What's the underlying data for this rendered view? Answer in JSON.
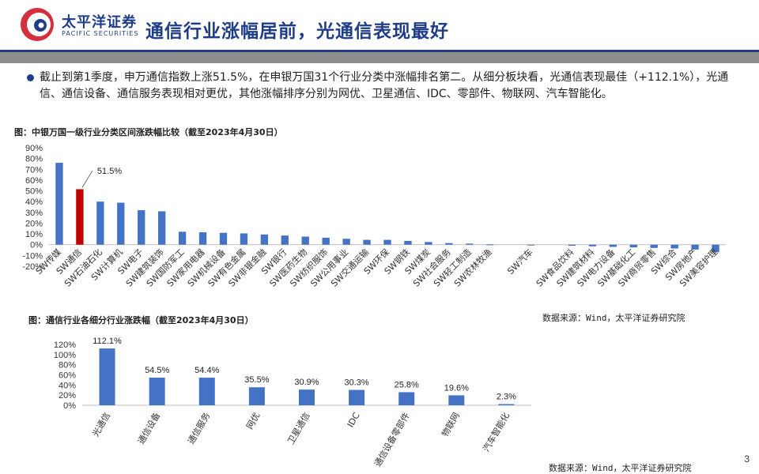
{
  "header": {
    "logo_cn": "太平洋证券",
    "logo_en": "PACIFIC SECURITIES",
    "title": "通信行业涨幅居前，光通信表现最好"
  },
  "summary": {
    "text": "截止到第1季度，申万通信指数上涨51.5%，在申银万国31个行业分类中涨幅排名第二。从细分板块看，光通信表现最佳（+112.1%），光通信、通信设备、通信服务表现相对更优，其他涨幅排序分别为网优、卫星通信、IDC、零部件、物联网、汽车智能化。"
  },
  "chart1": {
    "caption": "图：中银万国一级行业分类区间涨跌幅比较（截至2023年4月30日）",
    "source": "数据来源：Wind，太平洋证券研究院"
  },
  "chart2": {
    "caption": "图：通信行业各细分行业涨跌幅（截至2023年4月30日）",
    "source": "数据来源：Wind，太平洋证券研究院"
  },
  "page_number": "3",
  "colors": {
    "blue": "#4472c4",
    "red": "#c00000",
    "brand": "#1f3c88"
  },
  "chart_data": [
    {
      "type": "bar",
      "categories": [
        "SW传媒",
        "SW通信",
        "SW石油石化",
        "SW计算机",
        "SW电子",
        "SW建筑装饰",
        "SW国防军工",
        "SW家用电器",
        "SW机械设备",
        "SW有色金属",
        "SW非银金融",
        "SW银行",
        "SW医药生物",
        "SW纺织服饰",
        "SW公用事业",
        "SW交通运输",
        "SW环保",
        "SW钢铁",
        "SW煤炭",
        "SW社会服务",
        "SW轻工制造",
        "SW农林牧渔",
        "",
        "SW汽车",
        "",
        "SW食品饮料",
        "SW建筑材料",
        "SW电力设备",
        "SW基础化工",
        "SW商贸零售",
        "SW综合",
        "SW房地产",
        "SW美容护理"
      ],
      "values": [
        76,
        51.5,
        40,
        39,
        32,
        31,
        12,
        11.5,
        11,
        10.5,
        9.5,
        8.5,
        7.5,
        6.5,
        5.5,
        4.5,
        4.5,
        3.5,
        2.5,
        1.5,
        1,
        0.3,
        0,
        -0.3,
        0,
        -1,
        -1.5,
        -2,
        -2.5,
        -3,
        -3.5,
        -4.5,
        -7
      ],
      "highlight_index": 1,
      "annotation": "51.5%",
      "yticks": [
        "90%",
        "80%",
        "70%",
        "60%",
        "50%",
        "40%",
        "30%",
        "20%",
        "10%",
        "0%",
        "-10%",
        "-20%"
      ],
      "ylim": [
        -20,
        90
      ]
    },
    {
      "type": "bar",
      "categories": [
        "光通信",
        "通信设备",
        "通信服务",
        "网优",
        "卫星通信",
        "IDC",
        "通信设备零部件",
        "物联网",
        "汽车智能化"
      ],
      "values": [
        112.1,
        54.5,
        54.4,
        35.5,
        30.9,
        30.3,
        25.8,
        19.6,
        2.3
      ],
      "labels": [
        "112.1%",
        "54.5%",
        "54.4%",
        "35.5%",
        "30.9%",
        "30.3%",
        "25.8%",
        "19.6%",
        "2.3%"
      ],
      "yticks": [
        "120%",
        "100%",
        "80%",
        "60%",
        "40%",
        "20%",
        "0%"
      ],
      "ylim": [
        0,
        120
      ]
    }
  ]
}
